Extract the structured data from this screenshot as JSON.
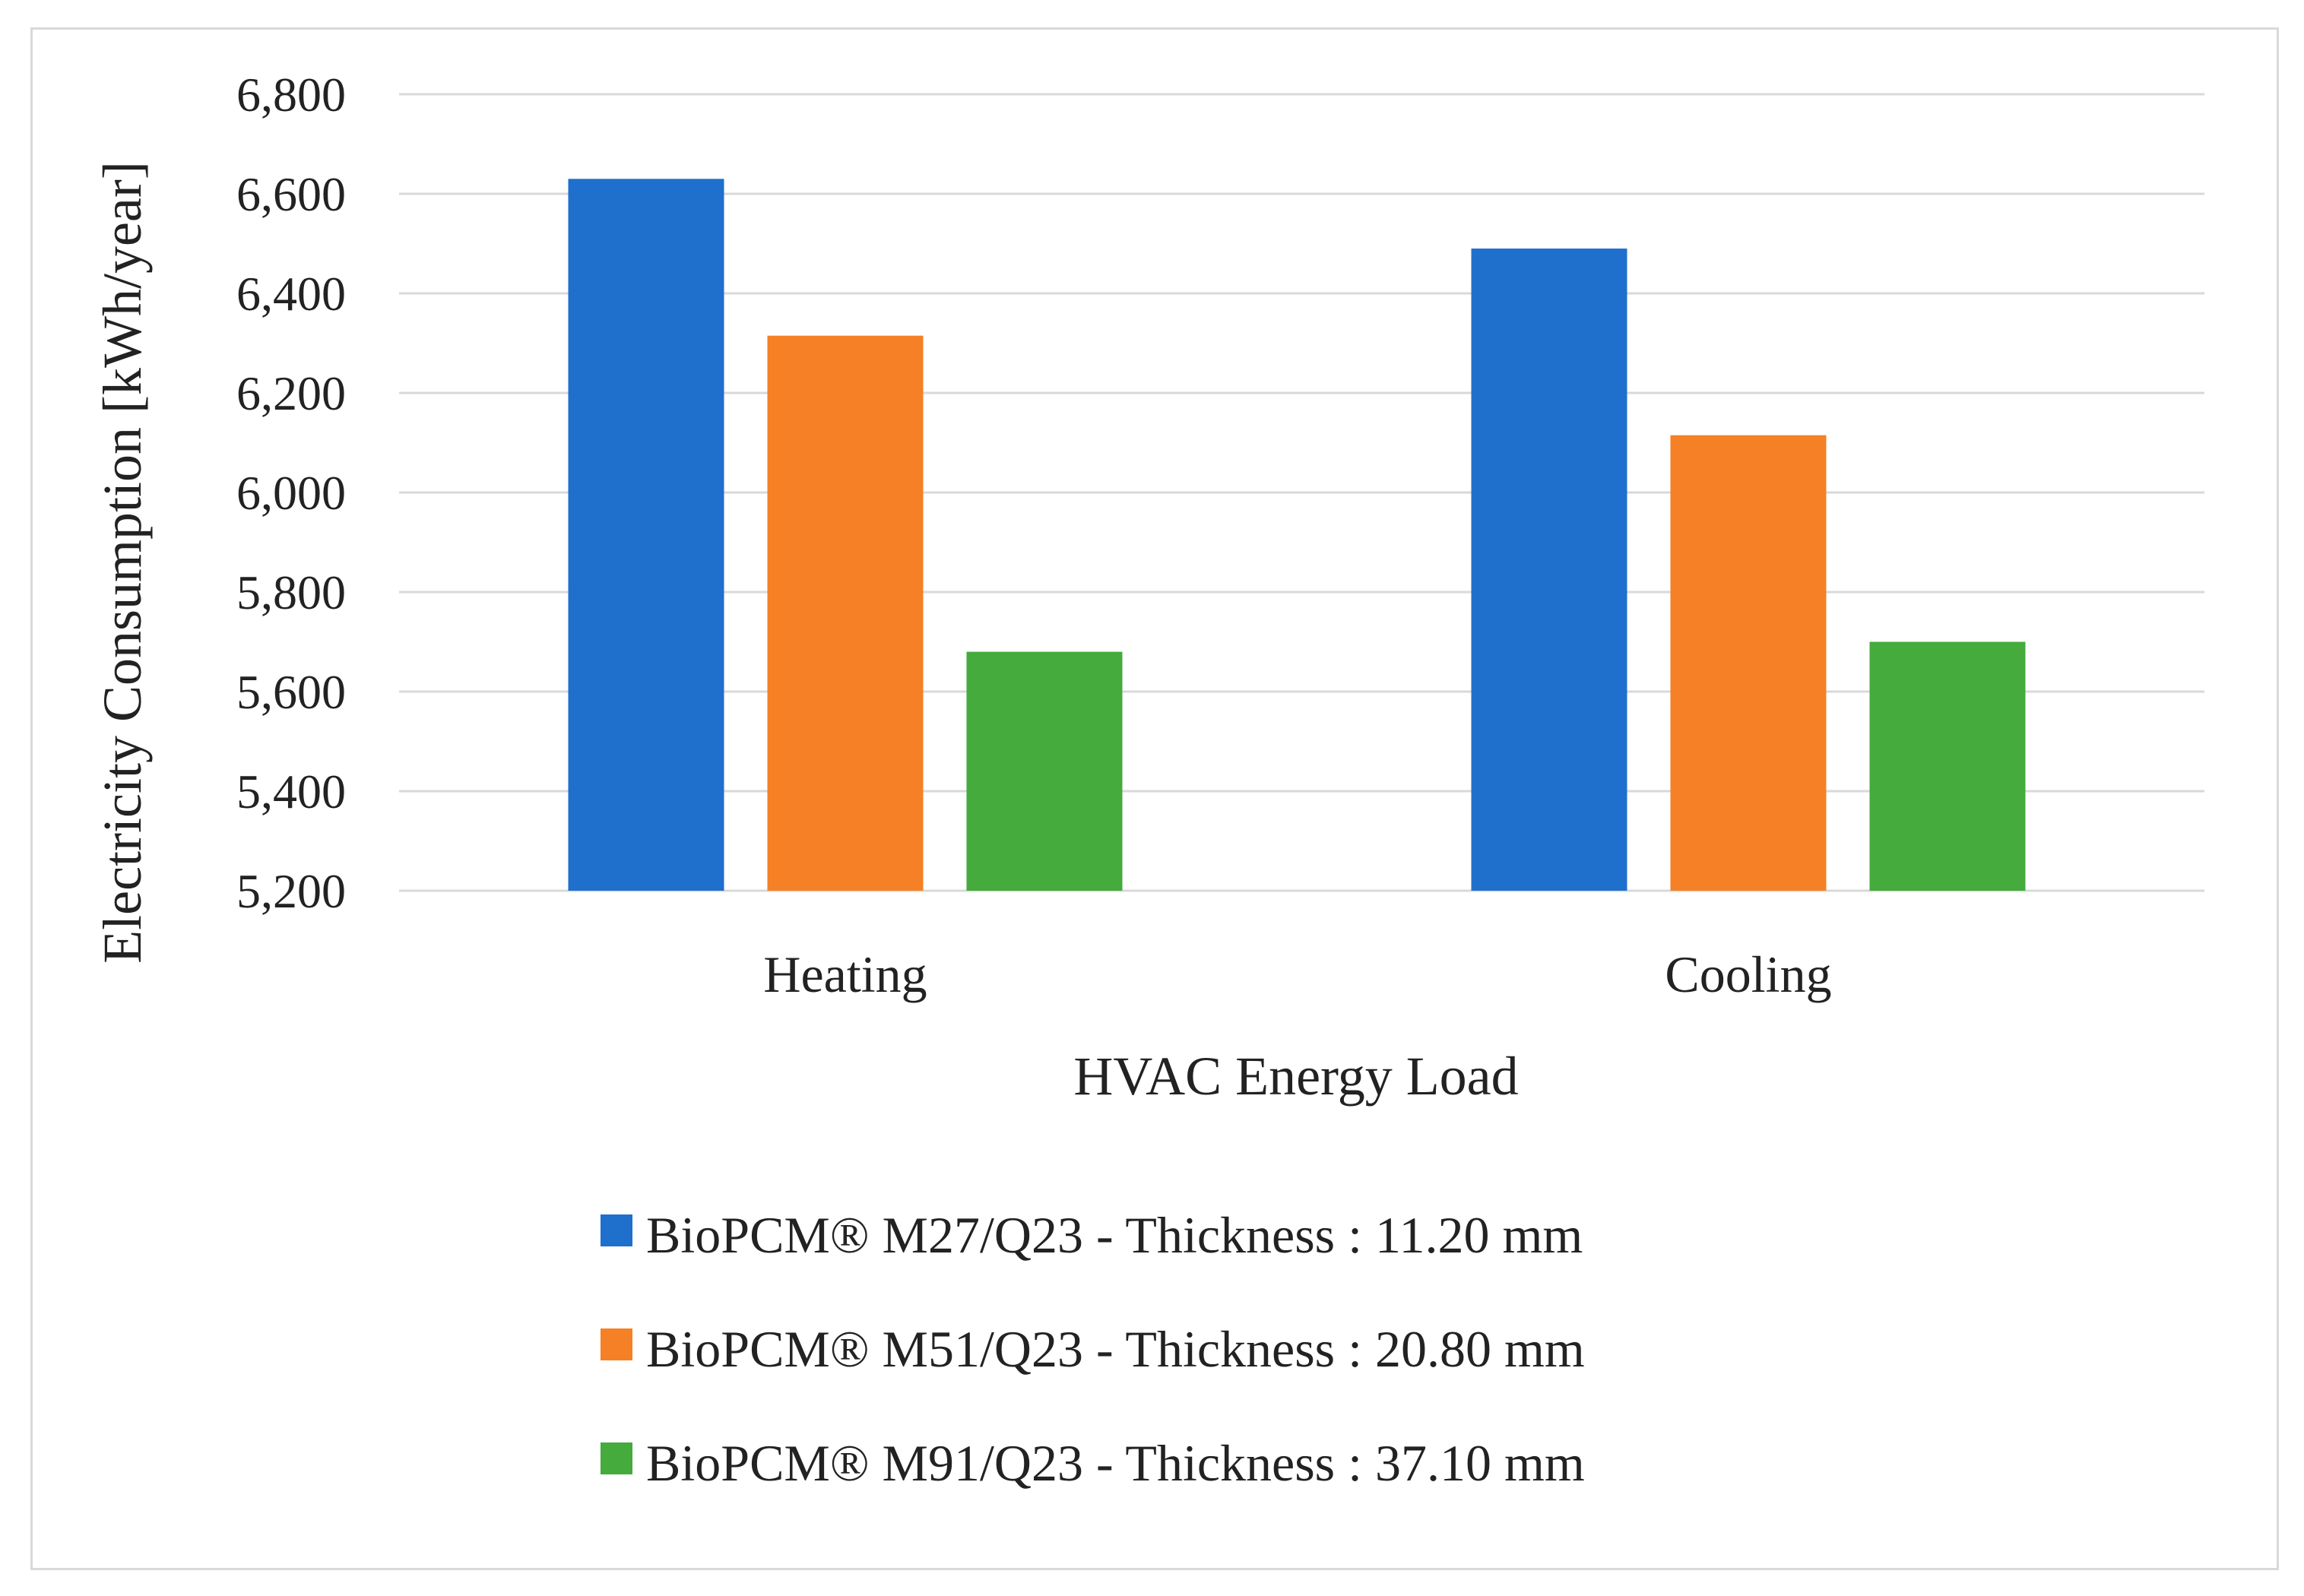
{
  "chart_data": {
    "type": "bar",
    "title": "",
    "xlabel": "HVAC Energy Load",
    "ylabel": "Electricity Consumption [kWh/year]",
    "categories": [
      "Heating",
      "Cooling"
    ],
    "ylim": [
      5200,
      6800
    ],
    "yticks": [
      5200,
      5400,
      5600,
      5800,
      6000,
      6200,
      6400,
      6600,
      6800
    ],
    "ytick_labels": [
      "5,200",
      "5,400",
      "5,600",
      "5,800",
      "6,000",
      "6,200",
      "6,400",
      "6,600",
      "6,800"
    ],
    "grid": "horizontal",
    "legend_position": "bottom",
    "series": [
      {
        "name": "BioPCM® M27/Q23 - Thickness : 11.20 mm",
        "color": "#1f6fcd",
        "values": [
          6630,
          6490
        ]
      },
      {
        "name": "BioPCM® M51/Q23 - Thickness : 20.80 mm",
        "color": "#f58025",
        "values": [
          6315,
          6115
        ]
      },
      {
        "name": "BioPCM® M91/Q23 - Thickness : 37.10 mm",
        "color": "#44ab3c",
        "values": [
          5680,
          5700
        ]
      }
    ]
  }
}
